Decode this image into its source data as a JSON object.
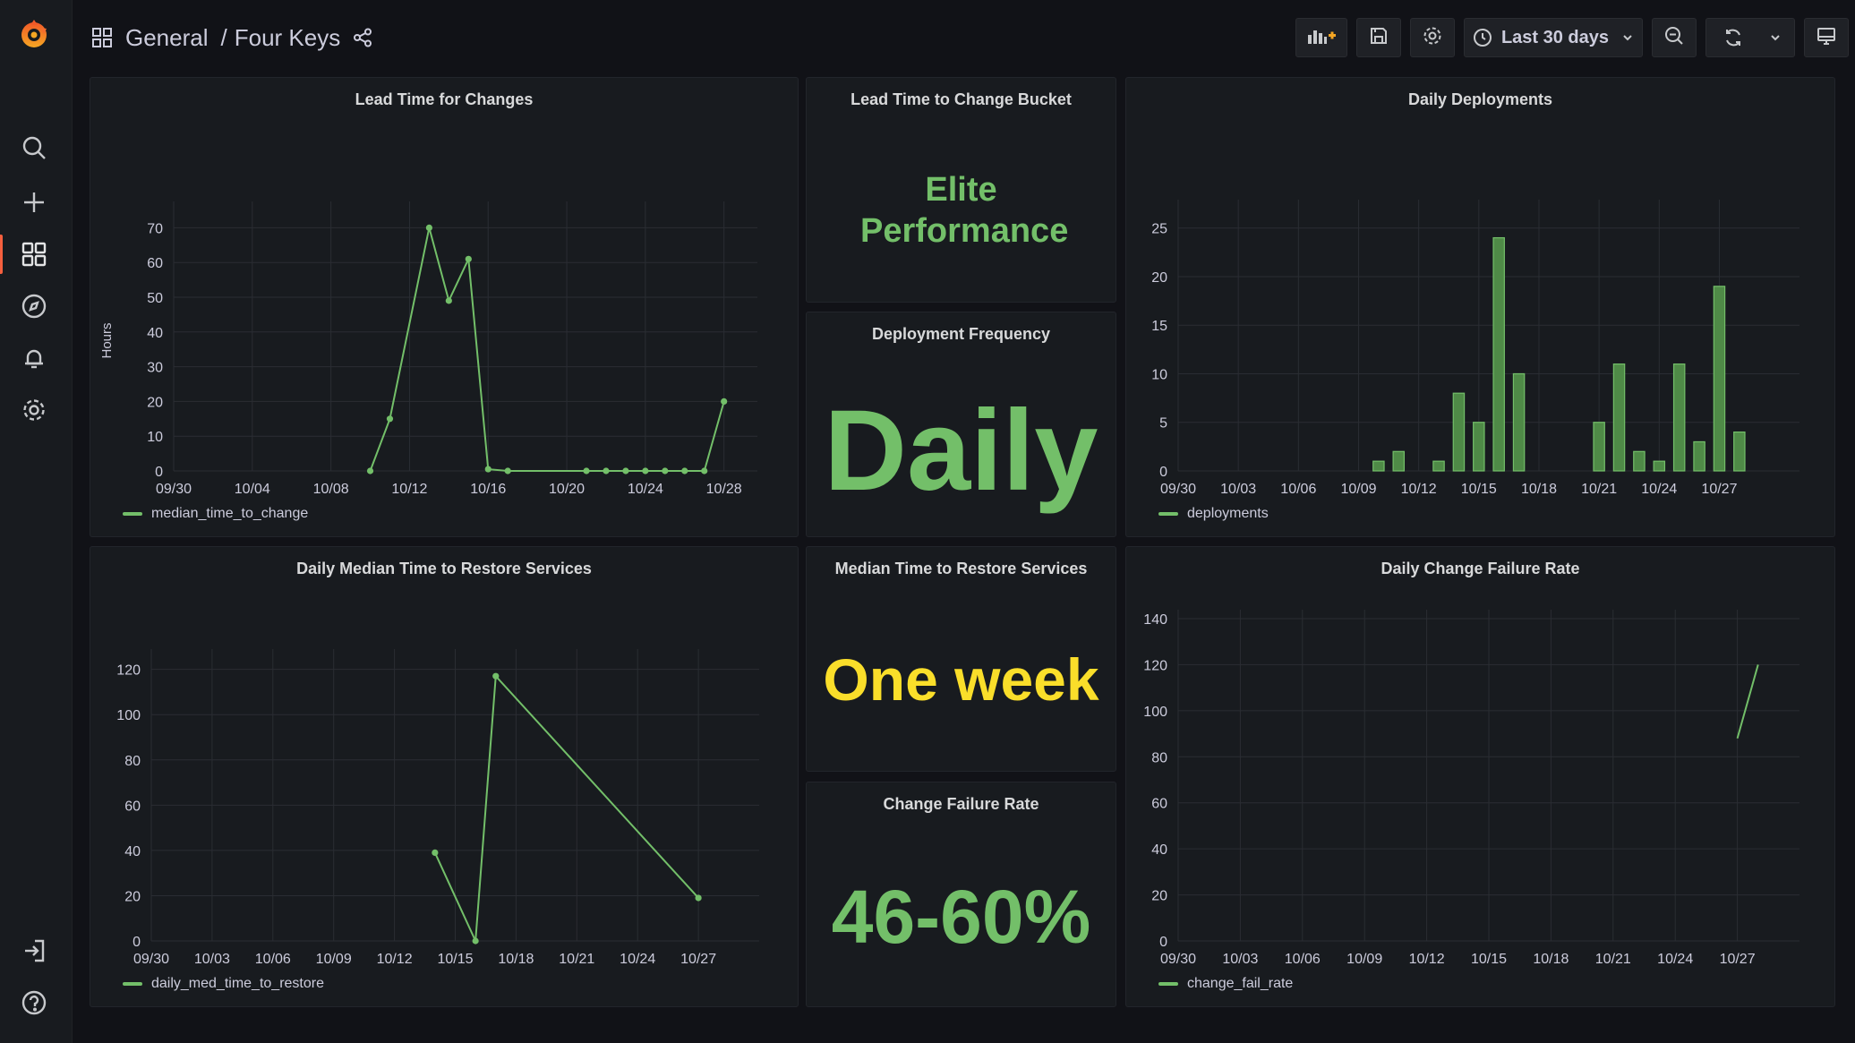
{
  "breadcrumb": {
    "folder": "General",
    "separator": "/",
    "dashboard": "Four Keys"
  },
  "toolbar": {
    "time_range": "Last 30 days"
  },
  "colors": {
    "green": "#73bf69",
    "yellow": "#fade2a",
    "grid": "#2a2d33",
    "axis_text": "#ccccdc"
  },
  "panels": {
    "lead_time_bucket": {
      "title": "Lead Time to Change Bucket",
      "value": "Elite Performance"
    },
    "deployment_frequency": {
      "title": "Deployment Frequency",
      "value": "Daily"
    },
    "median_restore": {
      "title": "Median Time to Restore Services",
      "value": "One week"
    },
    "change_failure_rate": {
      "title": "Change Failure Rate",
      "value": "46-60%"
    }
  },
  "chart_data": [
    {
      "id": "lead_time",
      "type": "line",
      "title": "Lead Time for Changes",
      "ylabel": "Hours",
      "ylim": [
        0,
        75
      ],
      "yticks": [
        0,
        10,
        20,
        30,
        40,
        50,
        60,
        70
      ],
      "xlim": [
        0,
        29.7
      ],
      "xticks": [
        {
          "x": 0,
          "label": "09/30"
        },
        {
          "x": 4,
          "label": "10/04"
        },
        {
          "x": 8,
          "label": "10/08"
        },
        {
          "x": 12,
          "label": "10/12"
        },
        {
          "x": 16,
          "label": "10/16"
        },
        {
          "x": 20,
          "label": "10/20"
        },
        {
          "x": 24,
          "label": "10/24"
        },
        {
          "x": 28,
          "label": "10/28"
        }
      ],
      "series": [
        {
          "name": "median_time_to_change",
          "points": [
            [
              10,
              0
            ],
            [
              11,
              15
            ],
            [
              13,
              70
            ],
            [
              14,
              49
            ],
            [
              15,
              61
            ],
            [
              16,
              0.5
            ],
            [
              17,
              0
            ],
            [
              21,
              0
            ],
            [
              22,
              0
            ],
            [
              23,
              0
            ],
            [
              24,
              0
            ],
            [
              25,
              0
            ],
            [
              26,
              0
            ],
            [
              27,
              0
            ],
            [
              28,
              20
            ]
          ]
        }
      ]
    },
    {
      "id": "daily_deployments",
      "type": "bar",
      "title": "Daily Deployments",
      "ylim": [
        0,
        27
      ],
      "yticks": [
        0,
        5,
        10,
        15,
        20,
        25
      ],
      "xlim": [
        0,
        31
      ],
      "xticks": [
        {
          "x": 0,
          "label": "09/30"
        },
        {
          "x": 3,
          "label": "10/03"
        },
        {
          "x": 6,
          "label": "10/06"
        },
        {
          "x": 9,
          "label": "10/09"
        },
        {
          "x": 12,
          "label": "10/12"
        },
        {
          "x": 15,
          "label": "10/15"
        },
        {
          "x": 18,
          "label": "10/18"
        },
        {
          "x": 21,
          "label": "10/21"
        },
        {
          "x": 24,
          "label": "10/24"
        },
        {
          "x": 27,
          "label": "10/27"
        }
      ],
      "series": [
        {
          "name": "deployments",
          "points": [
            [
              10,
              1
            ],
            [
              11,
              2
            ],
            [
              13,
              1
            ],
            [
              14,
              8
            ],
            [
              15,
              5
            ],
            [
              16,
              24
            ],
            [
              17,
              10
            ],
            [
              21,
              5
            ],
            [
              22,
              11
            ],
            [
              23,
              2
            ],
            [
              24,
              1
            ],
            [
              25,
              11
            ],
            [
              26,
              3
            ],
            [
              27,
              19
            ],
            [
              28,
              4
            ]
          ]
        }
      ]
    },
    {
      "id": "restore_time",
      "type": "line",
      "title": "Daily Median Time to Restore Services",
      "ylim": [
        0,
        125
      ],
      "yticks": [
        0,
        20,
        40,
        60,
        80,
        100,
        120
      ],
      "xlim": [
        0,
        30
      ],
      "xticks": [
        {
          "x": 0,
          "label": "09/30"
        },
        {
          "x": 3,
          "label": "10/03"
        },
        {
          "x": 6,
          "label": "10/06"
        },
        {
          "x": 9,
          "label": "10/09"
        },
        {
          "x": 12,
          "label": "10/12"
        },
        {
          "x": 15,
          "label": "10/15"
        },
        {
          "x": 18,
          "label": "10/18"
        },
        {
          "x": 21,
          "label": "10/21"
        },
        {
          "x": 24,
          "label": "10/24"
        },
        {
          "x": 27,
          "label": "10/27"
        }
      ],
      "series": [
        {
          "name": "daily_med_time_to_restore",
          "points": [
            [
              14,
              39
            ],
            [
              16,
              0
            ],
            [
              17,
              117
            ],
            [
              27,
              19
            ]
          ]
        }
      ]
    },
    {
      "id": "change_failure",
      "type": "line",
      "title": "Daily Change Failure Rate",
      "ylim": [
        0,
        140
      ],
      "yticks": [
        0,
        20,
        40,
        60,
        80,
        100,
        120,
        140
      ],
      "xlim": [
        0,
        30
      ],
      "xticks": [
        {
          "x": 0,
          "label": "09/30"
        },
        {
          "x": 3,
          "label": "10/03"
        },
        {
          "x": 6,
          "label": "10/06"
        },
        {
          "x": 9,
          "label": "10/09"
        },
        {
          "x": 12,
          "label": "10/12"
        },
        {
          "x": 15,
          "label": "10/15"
        },
        {
          "x": 18,
          "label": "10/18"
        },
        {
          "x": 21,
          "label": "10/21"
        },
        {
          "x": 24,
          "label": "10/24"
        },
        {
          "x": 27,
          "label": "10/27"
        }
      ],
      "series": [
        {
          "name": "change_fail_rate",
          "points": [
            [
              27,
              88
            ],
            [
              28,
              120
            ]
          ],
          "markers": false
        }
      ]
    }
  ]
}
